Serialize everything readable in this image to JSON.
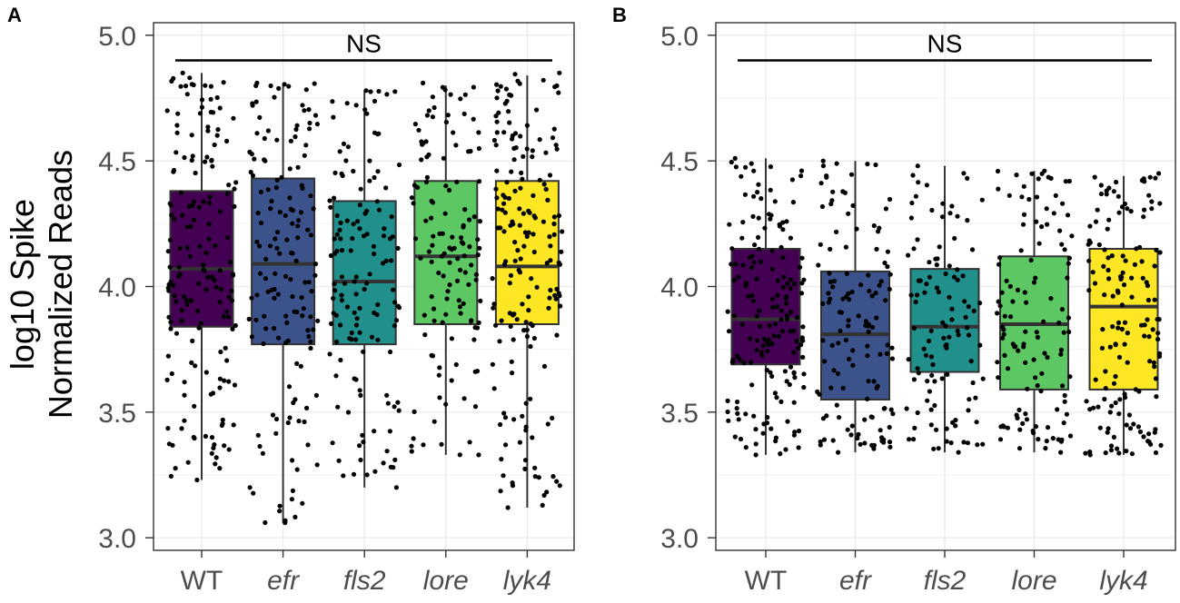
{
  "chart_data": {
    "ylabel_lines": [
      "log10 Spike",
      "Normalized Reads"
    ],
    "categories": [
      "WT",
      "efr",
      "fls2",
      "lore",
      "lyk4"
    ],
    "italic_categories": [
      "efr",
      "fls2",
      "lore",
      "lyk4"
    ],
    "colors": [
      "#440154",
      "#3B528B",
      "#21908C",
      "#5DC863",
      "#FDE725"
    ],
    "panels": [
      {
        "label": "A",
        "type": "box",
        "ylim": [
          2.95,
          5.05
        ],
        "yticks": [
          3.0,
          3.5,
          4.0,
          4.5,
          5.0
        ],
        "ytick_labels": [
          "3.0",
          "3.5",
          "4.0",
          "4.5",
          "5.0"
        ],
        "significance": "NS",
        "sig_y": 4.9,
        "boxes": [
          {
            "q1": 3.84,
            "median": 4.07,
            "q3": 4.38,
            "lower": 3.23,
            "upper": 4.85,
            "n": 170,
            "pmin": 3.23,
            "pmax": 4.85
          },
          {
            "q1": 3.77,
            "median": 4.09,
            "q3": 4.43,
            "lower": 3.06,
            "upper": 4.8,
            "n": 150,
            "pmin": 3.06,
            "pmax": 4.81
          },
          {
            "q1": 3.77,
            "median": 4.02,
            "q3": 4.34,
            "lower": 3.2,
            "upper": 4.78,
            "n": 140,
            "pmin": 3.2,
            "pmax": 4.78
          },
          {
            "q1": 3.85,
            "median": 4.12,
            "q3": 4.42,
            "lower": 3.33,
            "upper": 4.8,
            "n": 130,
            "pmin": 3.33,
            "pmax": 4.81
          },
          {
            "q1": 3.85,
            "median": 4.08,
            "q3": 4.42,
            "lower": 3.12,
            "upper": 4.84,
            "n": 180,
            "pmin": 3.12,
            "pmax": 4.85
          }
        ]
      },
      {
        "label": "B",
        "type": "box",
        "ylim": [
          2.95,
          5.05
        ],
        "yticks": [
          3.0,
          3.5,
          4.0,
          4.5,
          5.0
        ],
        "ytick_labels": [
          "3.0",
          "3.5",
          "4.0",
          "4.5",
          "5.0"
        ],
        "significance": "NS",
        "sig_y": 4.9,
        "boxes": [
          {
            "q1": 3.69,
            "median": 3.87,
            "q3": 4.15,
            "lower": 3.33,
            "upper": 4.51,
            "n": 170,
            "pmin": 3.33,
            "pmax": 4.51
          },
          {
            "q1": 3.55,
            "median": 3.81,
            "q3": 4.06,
            "lower": 3.34,
            "upper": 4.5,
            "n": 130,
            "pmin": 3.34,
            "pmax": 4.5
          },
          {
            "q1": 3.66,
            "median": 3.84,
            "q3": 4.07,
            "lower": 3.34,
            "upper": 4.48,
            "n": 110,
            "pmin": 3.34,
            "pmax": 4.48
          },
          {
            "q1": 3.59,
            "median": 3.85,
            "q3": 4.12,
            "lower": 3.34,
            "upper": 4.46,
            "n": 120,
            "pmin": 3.34,
            "pmax": 4.46
          },
          {
            "q1": 3.59,
            "median": 3.92,
            "q3": 4.15,
            "lower": 3.33,
            "upper": 4.44,
            "n": 150,
            "pmin": 3.33,
            "pmax": 4.45
          }
        ]
      }
    ]
  }
}
